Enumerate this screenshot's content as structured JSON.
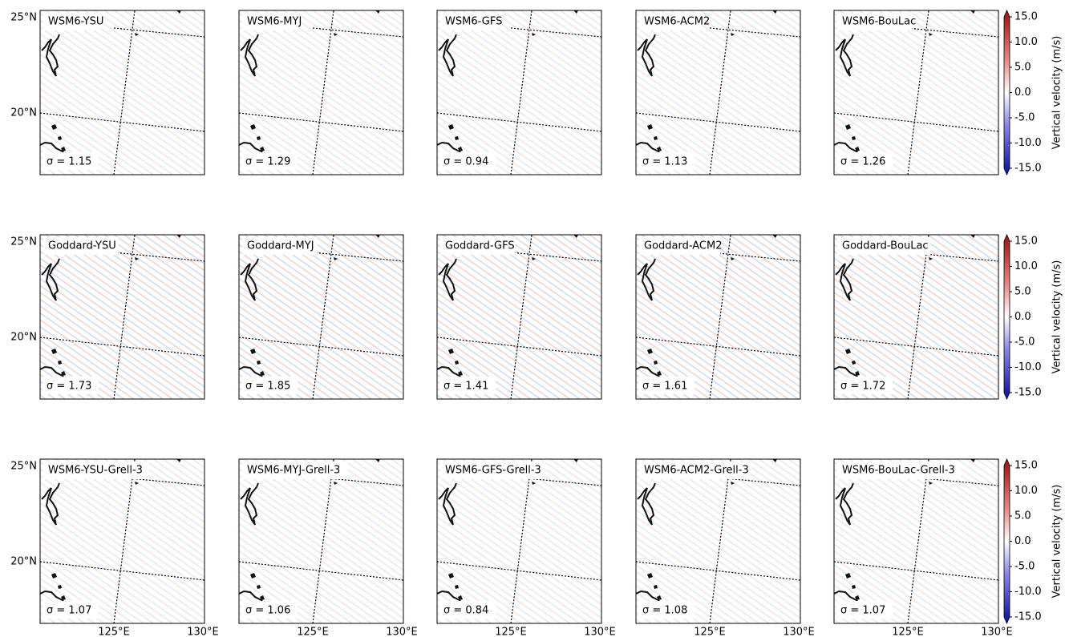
{
  "figure": {
    "lat_labels": [
      "25°N",
      "20°N"
    ],
    "lon_labels": [
      "125°E",
      "130°E"
    ],
    "colorbar": {
      "label": "Vertical velocity (m/s)",
      "ticks": [
        "15.0",
        "10.0",
        "5.0",
        "0.0",
        "-5.0",
        "-10.0",
        "-15.0"
      ]
    },
    "rows": [
      [
        {
          "title": "WSM6-YSU",
          "sigma": "σ = 1.15"
        },
        {
          "title": "WSM6-MYJ",
          "sigma": "σ = 1.29"
        },
        {
          "title": "WSM6-GFS",
          "sigma": "σ = 0.94"
        },
        {
          "title": "WSM6-ACM2",
          "sigma": "σ = 1.13"
        },
        {
          "title": "WSM6-BouLac",
          "sigma": "σ = 1.26"
        }
      ],
      [
        {
          "title": "Goddard-YSU",
          "sigma": "σ = 1.73"
        },
        {
          "title": "Goddard-MYJ",
          "sigma": "σ = 1.85"
        },
        {
          "title": "Goddard-GFS",
          "sigma": "σ = 1.41"
        },
        {
          "title": "Goddard-ACM2",
          "sigma": "σ = 1.61"
        },
        {
          "title": "Goddard-BouLac",
          "sigma": "σ = 1.72"
        }
      ],
      [
        {
          "title": "WSM6-YSU-Grell-3",
          "sigma": "σ = 1.07"
        },
        {
          "title": "WSM6-MYJ-Grell-3",
          "sigma": "σ = 1.06"
        },
        {
          "title": "WSM6-GFS-Grell-3",
          "sigma": "σ = 0.84"
        },
        {
          "title": "WSM6-ACM2-Grell-3",
          "sigma": "σ = 1.08"
        },
        {
          "title": "WSM6-BouLac-Grell-3",
          "sigma": "σ = 1.07"
        }
      ]
    ]
  }
}
